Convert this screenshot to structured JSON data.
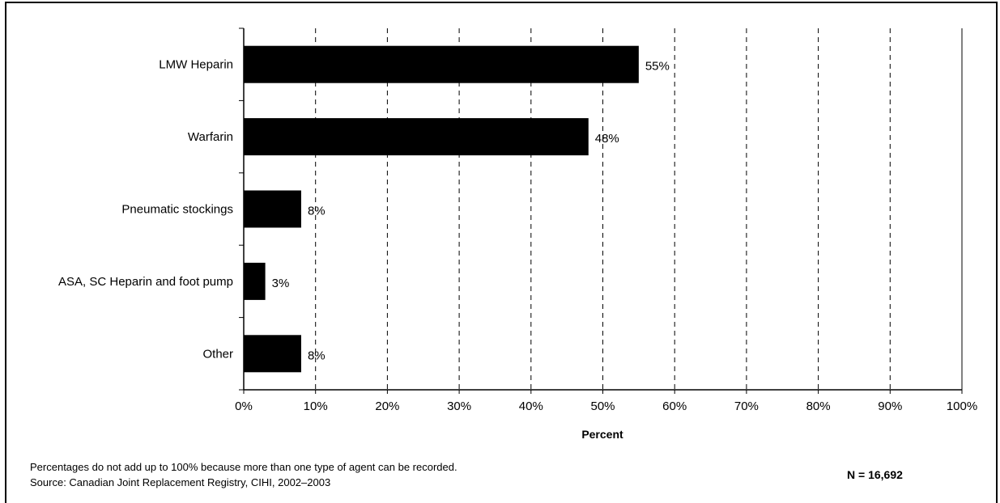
{
  "chart_data": {
    "type": "bar",
    "orientation": "horizontal",
    "categories": [
      "LMW Heparin",
      "Warfarin",
      "Pneumatic stockings",
      "ASA, SC Heparin and foot pump",
      "Other"
    ],
    "values": [
      55,
      48,
      8,
      3,
      8
    ],
    "data_labels": [
      "55%",
      "48%",
      "8%",
      "3%",
      "8%"
    ],
    "xlabel": "Percent",
    "ylabel": "",
    "xlim": [
      0,
      100
    ],
    "x_ticks": [
      "0%",
      "10%",
      "20%",
      "30%",
      "40%",
      "50%",
      "60%",
      "70%",
      "80%",
      "90%",
      "100%"
    ],
    "grid": "vertical dashed",
    "bar_color": "#000000"
  },
  "footer": {
    "note": "Percentages do not add up to 100% because more than one type of agent can be recorded.",
    "source": "Source: Canadian Joint Replacement Registry, CIHI, 2002–2003",
    "n_label": "N = 16,692"
  }
}
